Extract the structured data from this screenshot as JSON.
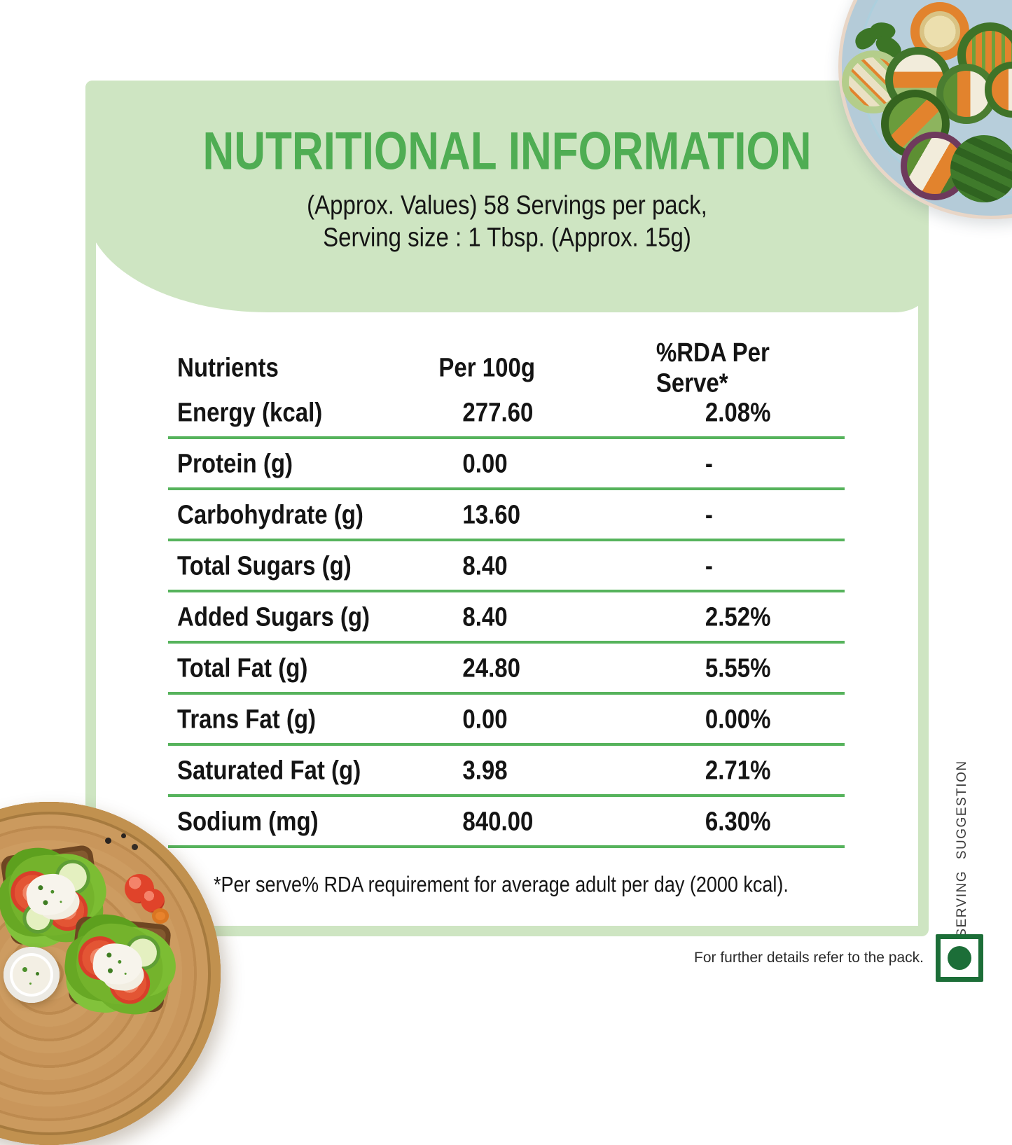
{
  "header": {
    "title": "NUTRITIONAL INFORMATION",
    "subtitle_line1": "(Approx. Values) 58 Servings per pack,",
    "subtitle_line2": "Serving size : 1 Tbsp. (Approx. 15g)"
  },
  "table": {
    "columns": [
      "Nutrients",
      "Per 100g",
      "%RDA Per Serve*"
    ],
    "rows": [
      {
        "nutrient": "Energy (kcal)",
        "per_100g": "277.60",
        "rda_per_serve": "2.08%"
      },
      {
        "nutrient": "Protein (g)",
        "per_100g": "0.00",
        "rda_per_serve": "-"
      },
      {
        "nutrient": "Carbohydrate (g)",
        "per_100g": "13.60",
        "rda_per_serve": "-"
      },
      {
        "nutrient": "Total Sugars (g)",
        "per_100g": "8.40",
        "rda_per_serve": "-"
      },
      {
        "nutrient": "Added Sugars (g)",
        "per_100g": "8.40",
        "rda_per_serve": "2.52%"
      },
      {
        "nutrient": "Total Fat (g)",
        "per_100g": "24.80",
        "rda_per_serve": "5.55%"
      },
      {
        "nutrient": "Trans Fat (g)",
        "per_100g": "0.00",
        "rda_per_serve": "0.00%"
      },
      {
        "nutrient": "Saturated Fat (g)",
        "per_100g": "3.98",
        "rda_per_serve": "2.71%"
      },
      {
        "nutrient": "Sodium (mg)",
        "per_100g": "840.00",
        "rda_per_serve": "6.30%"
      }
    ],
    "footnote": "*Per serve% RDA requirement for average adult per day (2000 kcal)."
  },
  "side": {
    "serving_suggestion_label": "SERVING SUGGESTION"
  },
  "footer": {
    "further_details": "For further details refer to the pack."
  },
  "icons": {
    "veg_mark": "vegetarian-mark-icon",
    "photo_top_right": "veggie-rolls-plate-photo",
    "photo_bottom_left": "sandwich-board-photo"
  },
  "colors": {
    "panel_green": "#cee5c2",
    "title_green": "#4fad53",
    "divider_green": "#56b35c",
    "veg_mark_green": "#1c6e38",
    "text_black": "#141414"
  }
}
